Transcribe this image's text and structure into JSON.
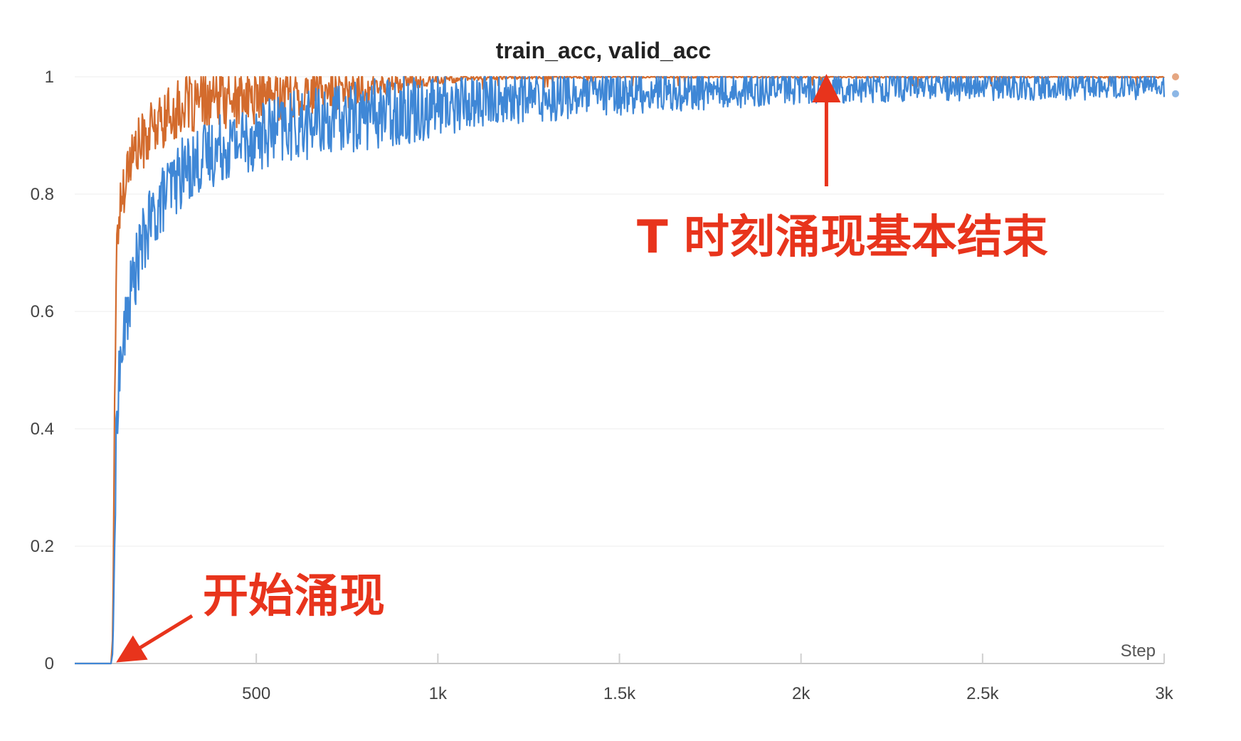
{
  "chart_data": {
    "type": "line",
    "title": "train_acc, valid_acc",
    "xlabel": "Step",
    "ylabel": "",
    "xlim": [
      0,
      3000
    ],
    "ylim": [
      0,
      1
    ],
    "x_ticks": [
      {
        "value": 500,
        "label": "500"
      },
      {
        "value": 1000,
        "label": "1k"
      },
      {
        "value": 1500,
        "label": "1.5k"
      },
      {
        "value": 2000,
        "label": "2k"
      },
      {
        "value": 2500,
        "label": "2.5k"
      },
      {
        "value": 3000,
        "label": "3k"
      }
    ],
    "y_ticks": [
      {
        "value": 0,
        "label": "0"
      },
      {
        "value": 0.2,
        "label": "0.2"
      },
      {
        "value": 0.4,
        "label": "0.4"
      },
      {
        "value": 0.6,
        "label": "0.6"
      },
      {
        "value": 0.8,
        "label": "0.8"
      },
      {
        "value": 1,
        "label": "1"
      }
    ],
    "grid": true,
    "series": [
      {
        "color": "#d36b2d",
        "x": [
          0,
          100,
          105,
          110,
          115,
          120,
          130,
          140,
          150,
          175,
          200,
          250,
          300,
          400,
          500,
          600,
          700,
          800,
          900,
          1000,
          1100,
          1200,
          1500,
          2000,
          2500,
          3000
        ],
        "values": [
          0,
          0,
          0.05,
          0.45,
          0.7,
          0.75,
          0.8,
          0.83,
          0.86,
          0.88,
          0.9,
          0.93,
          0.95,
          0.96,
          0.965,
          0.97,
          0.975,
          0.98,
          0.99,
          0.995,
          0.998,
          0.999,
          1.0,
          1.0,
          1.0,
          1.0
        ]
      },
      {
        "color": "#3f87d6",
        "x": [
          0,
          100,
          105,
          110,
          115,
          120,
          130,
          140,
          150,
          175,
          200,
          250,
          300,
          400,
          500,
          600,
          700,
          800,
          900,
          1000,
          1100,
          1200,
          1500,
          2000,
          2500,
          3000
        ],
        "values": [
          0,
          0,
          0.02,
          0.2,
          0.4,
          0.48,
          0.53,
          0.57,
          0.62,
          0.69,
          0.74,
          0.8,
          0.84,
          0.88,
          0.9,
          0.915,
          0.925,
          0.935,
          0.945,
          0.952,
          0.958,
          0.963,
          0.972,
          0.982,
          0.985,
          0.986
        ]
      }
    ],
    "annotations": [
      {
        "text": "开始涌现",
        "x": 120,
        "y": 0,
        "color": "#e8341c"
      },
      {
        "text": "T 时刻涌现基本结束",
        "x": 2070,
        "y": 1.0,
        "color": "#e8341c"
      }
    ]
  }
}
